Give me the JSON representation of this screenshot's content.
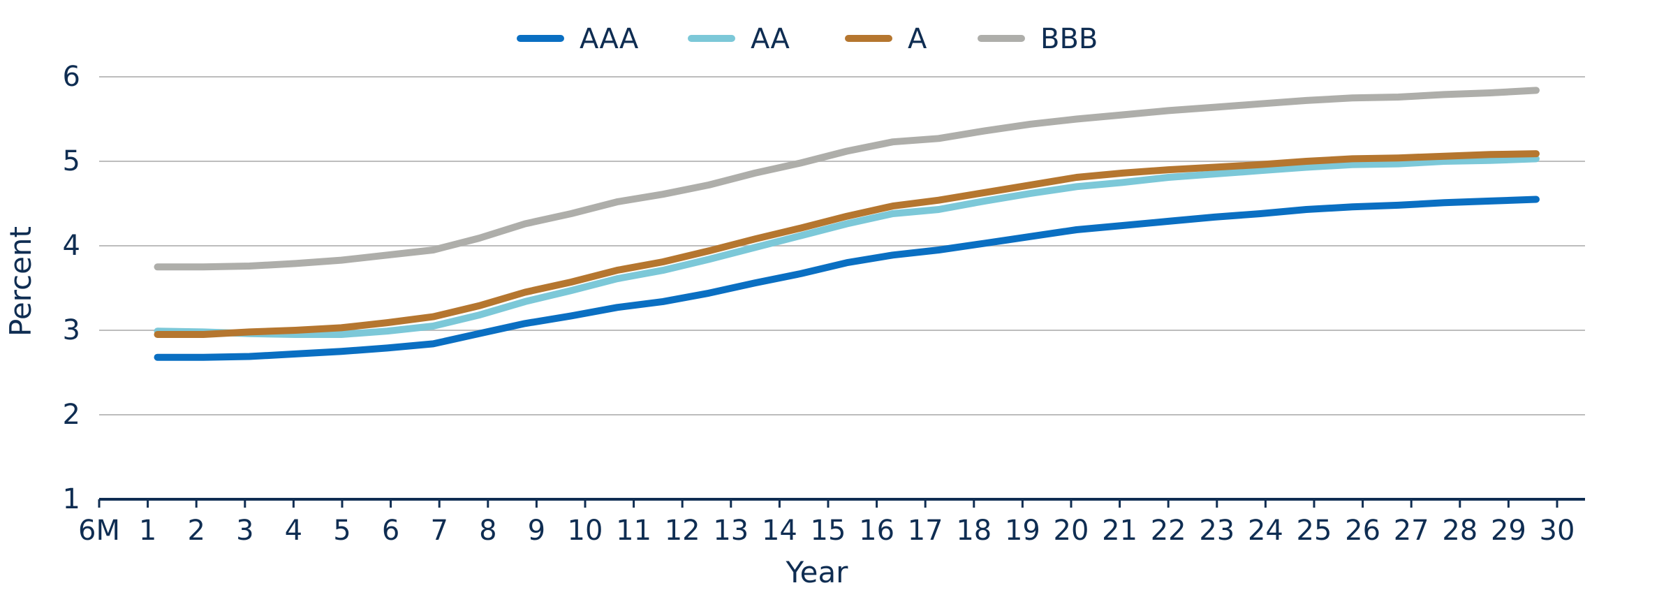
{
  "chart_data": {
    "type": "line",
    "title": "",
    "xlabel": "Year",
    "ylabel": "Percent",
    "ylim": [
      1,
      6
    ],
    "yticks": [
      "1",
      "2",
      "3",
      "4",
      "5",
      "6"
    ],
    "grid": "horizontal",
    "legend_position": "top-center",
    "categories": [
      "6M",
      "1",
      "2",
      "3",
      "4",
      "5",
      "6",
      "7",
      "8",
      "9",
      "10",
      "11",
      "12",
      "13",
      "14",
      "15",
      "16",
      "17",
      "18",
      "19",
      "20",
      "21",
      "22",
      "23",
      "24",
      "25",
      "26",
      "27",
      "28",
      "29",
      "30"
    ],
    "series": [
      {
        "name": "AAA",
        "color": "#0a6fc2",
        "values": [
          2.68,
          2.68,
          2.69,
          2.72,
          2.75,
          2.79,
          2.84,
          2.96,
          3.08,
          3.17,
          3.27,
          3.34,
          3.44,
          3.56,
          3.67,
          3.8,
          3.89,
          3.95,
          4.03,
          4.11,
          4.19,
          4.24,
          4.29,
          4.34,
          4.38,
          4.43,
          4.46,
          4.48,
          4.51,
          4.53,
          4.55
        ]
      },
      {
        "name": "AA",
        "color": "#7cc8d8",
        "values": [
          2.99,
          2.98,
          2.96,
          2.95,
          2.95,
          2.99,
          3.05,
          3.18,
          3.34,
          3.47,
          3.61,
          3.71,
          3.84,
          3.98,
          4.12,
          4.26,
          4.38,
          4.43,
          4.53,
          4.62,
          4.7,
          4.75,
          4.81,
          4.85,
          4.89,
          4.93,
          4.96,
          4.97,
          5.0,
          5.01,
          5.03
        ]
      },
      {
        "name": "A",
        "color": "#b5762f",
        "values": [
          2.95,
          2.95,
          2.98,
          3.0,
          3.03,
          3.09,
          3.16,
          3.29,
          3.45,
          3.57,
          3.71,
          3.81,
          3.94,
          4.08,
          4.21,
          4.35,
          4.47,
          4.54,
          4.63,
          4.72,
          4.81,
          4.86,
          4.9,
          4.93,
          4.96,
          5.0,
          5.03,
          5.04,
          5.06,
          5.08,
          5.09
        ]
      },
      {
        "name": "BBB",
        "color": "#aeaeaa",
        "values": [
          3.75,
          3.75,
          3.76,
          3.79,
          3.83,
          3.89,
          3.95,
          4.09,
          4.26,
          4.38,
          4.52,
          4.61,
          4.72,
          4.86,
          4.98,
          5.12,
          5.23,
          5.27,
          5.36,
          5.44,
          5.5,
          5.55,
          5.6,
          5.64,
          5.68,
          5.72,
          5.75,
          5.76,
          5.79,
          5.81,
          5.84
        ]
      }
    ]
  }
}
